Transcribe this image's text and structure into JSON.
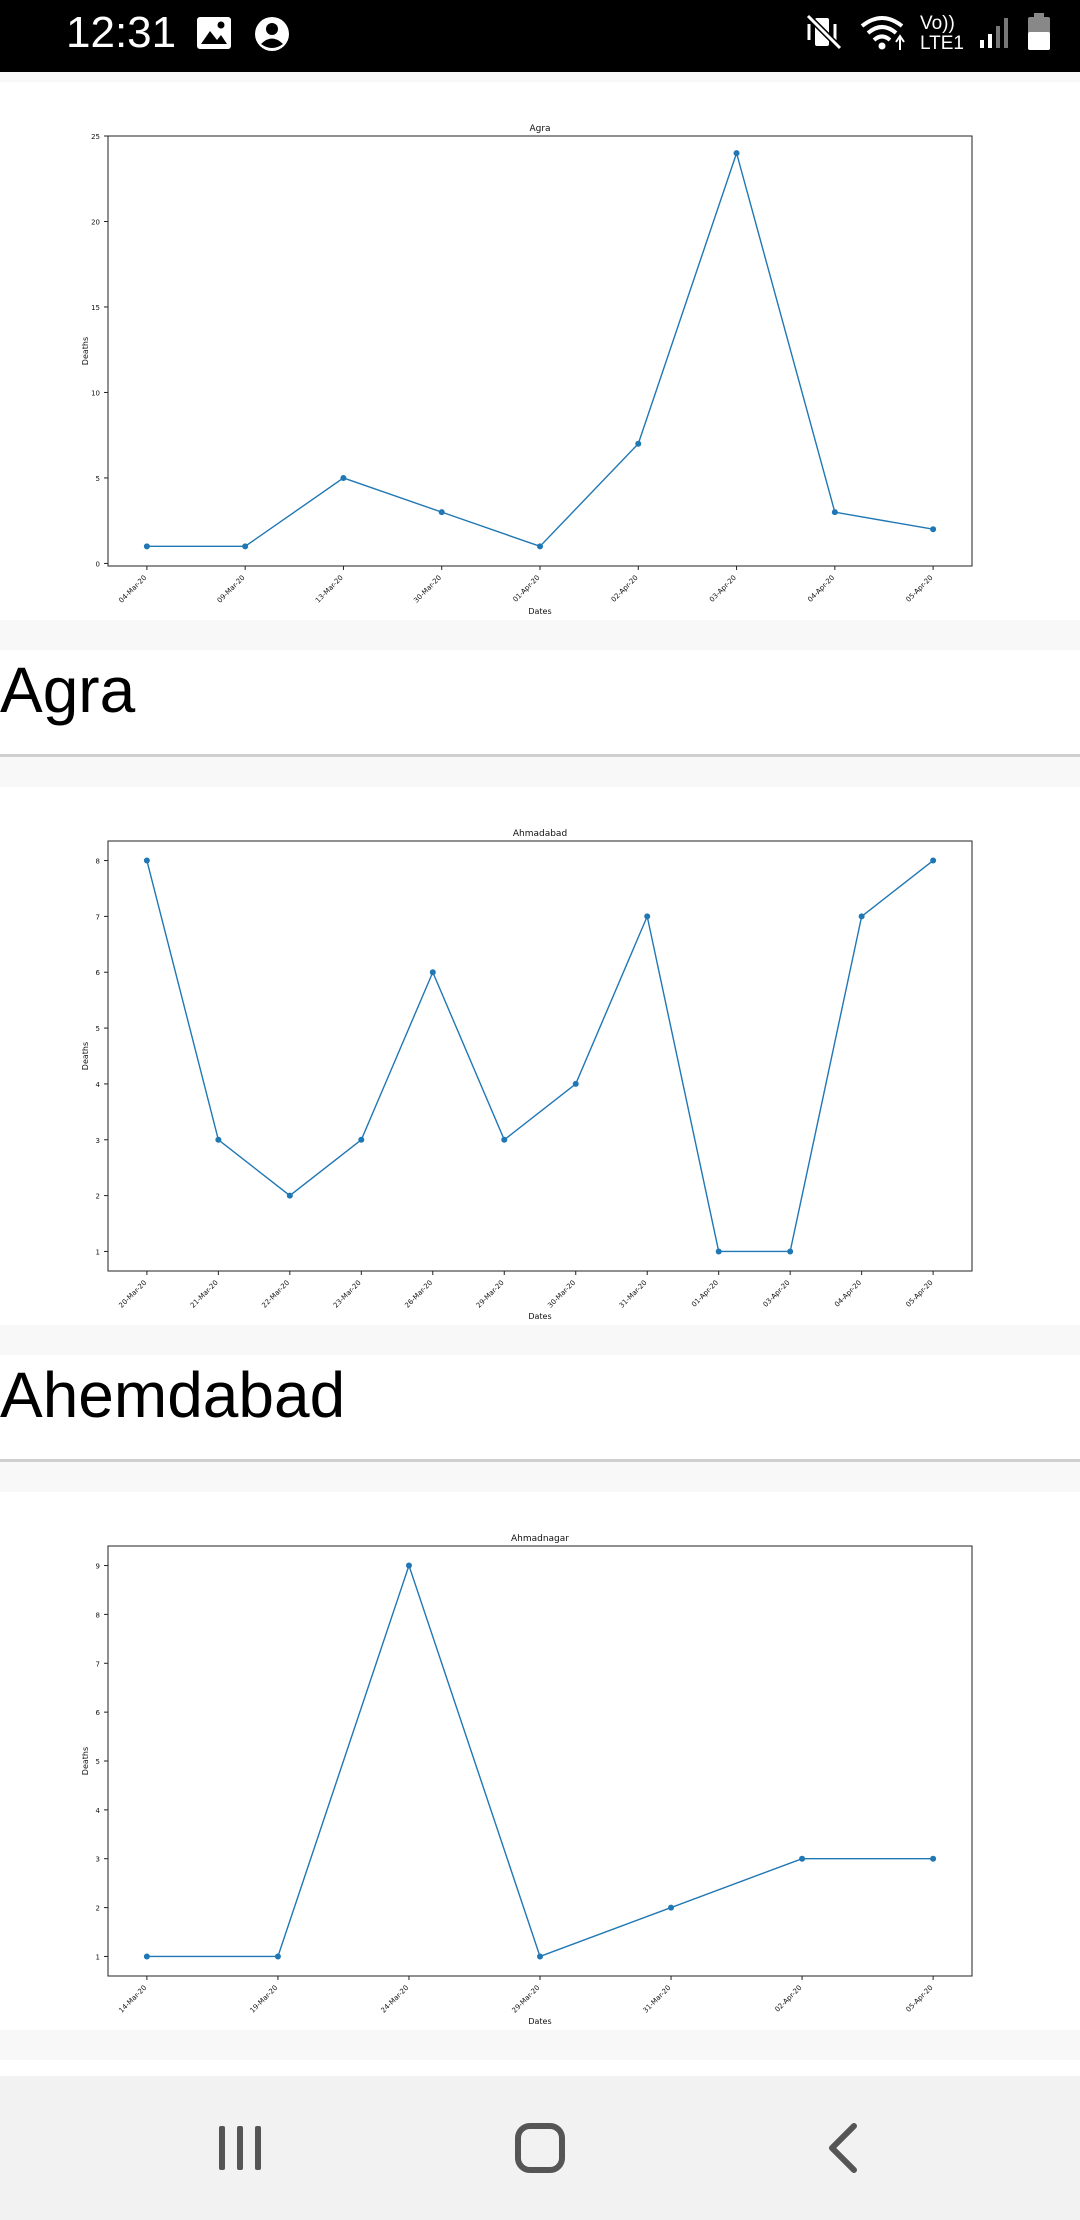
{
  "status_bar": {
    "time": "12:31",
    "left_icons": [
      "image-icon",
      "account-circle-icon"
    ],
    "right_icons": [
      "vibrate-mute-icon",
      "wifi-icon",
      "signal-icon",
      "battery-icon"
    ],
    "network_line1": "Vo))",
    "network_line2": "LTE1"
  },
  "cards": [
    {
      "title": "Agra",
      "chart_data": {
        "type": "line",
        "title": "Agra",
        "xlabel": "Dates",
        "ylabel": "Deaths",
        "x": [
          "04-Mar-20",
          "09-Mar-20",
          "13-Mar-20",
          "30-Mar-20",
          "01-Apr-20",
          "02-Apr-20",
          "03-Apr-20",
          "04-Apr-20",
          "05-Apr-20"
        ],
        "values": [
          1,
          1,
          5,
          3,
          1,
          7,
          24,
          3,
          2
        ],
        "yticks": [
          0,
          5,
          10,
          15,
          20,
          25
        ],
        "ylim": [
          -0.15,
          25
        ],
        "color": "#1f77b4"
      }
    },
    {
      "title": "Ahemdabad",
      "chart_data": {
        "type": "line",
        "title": "Ahmadabad",
        "xlabel": "Dates",
        "ylabel": "Deaths",
        "x": [
          "20-Mar-20",
          "21-Mar-20",
          "22-Mar-20",
          "23-Mar-20",
          "26-Mar-20",
          "29-Mar-20",
          "30-Mar-20",
          "31-Mar-20",
          "01-Apr-20",
          "03-Apr-20",
          "04-Apr-20",
          "05-Apr-20"
        ],
        "values": [
          8,
          3,
          2,
          3,
          6,
          3,
          4,
          7,
          1,
          1,
          7,
          8
        ],
        "yticks": [
          1,
          2,
          3,
          4,
          5,
          6,
          7,
          8
        ],
        "ylim": [
          0.65,
          8.35
        ],
        "color": "#1f77b4"
      }
    },
    {
      "title": "",
      "chart_data": {
        "type": "line",
        "title": "Ahmadnagar",
        "xlabel": "Dates",
        "ylabel": "Deaths",
        "x": [
          "14-Mar-20",
          "19-Mar-20",
          "24-Mar-20",
          "29-Mar-20",
          "31-Mar-20",
          "02-Apr-20",
          "05-Apr-20"
        ],
        "values": [
          1,
          1,
          9,
          1,
          2,
          3,
          3
        ],
        "yticks": [
          1,
          2,
          3,
          4,
          5,
          6,
          7,
          8,
          9
        ],
        "ylim": [
          0.6,
          9.4
        ],
        "color": "#1f77b4"
      }
    }
  ],
  "nav_bar": {
    "recents_icon": "recents-icon",
    "home_icon": "home-icon",
    "back_icon": "back-icon"
  }
}
